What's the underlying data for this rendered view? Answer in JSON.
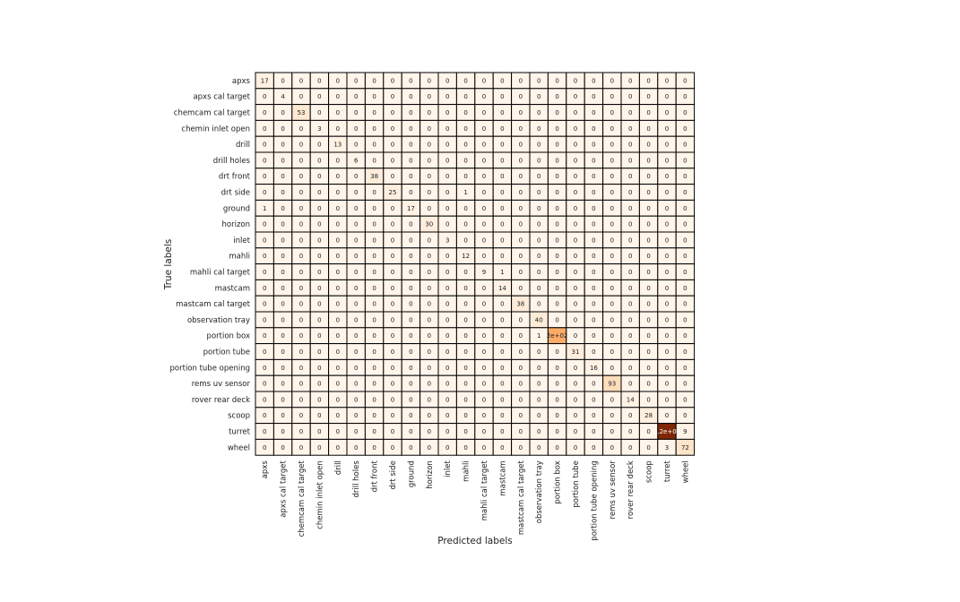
{
  "chart_data": {
    "type": "heatmap",
    "title": "",
    "xlabel": "Predicted labels",
    "ylabel": "True labels",
    "colormap": "Oranges",
    "grid": true,
    "labels": [
      "apxs",
      "apxs cal target",
      "chemcam cal target",
      "chemin inlet open",
      "drill",
      "drill holes",
      "drt front",
      "drt side",
      "ground",
      "horizon",
      "inlet",
      "mahli",
      "mahli cal target",
      "mastcam",
      "mastcam cal target",
      "observation tray",
      "portion box",
      "portion tube",
      "portion tube opening",
      "rems uv sensor",
      "rover rear deck",
      "scoop",
      "turret",
      "wheel"
    ],
    "matrix": [
      [
        17,
        0,
        0,
        0,
        0,
        0,
        0,
        0,
        0,
        0,
        0,
        0,
        0,
        0,
        0,
        0,
        0,
        0,
        0,
        0,
        0,
        0,
        0,
        0
      ],
      [
        0,
        4,
        0,
        0,
        0,
        0,
        0,
        0,
        0,
        0,
        0,
        0,
        0,
        0,
        0,
        0,
        0,
        0,
        0,
        0,
        0,
        0,
        0,
        0
      ],
      [
        0,
        0,
        53,
        0,
        0,
        0,
        0,
        0,
        0,
        0,
        0,
        0,
        0,
        0,
        0,
        0,
        0,
        0,
        0,
        0,
        0,
        0,
        0,
        0
      ],
      [
        0,
        0,
        0,
        3,
        0,
        0,
        0,
        0,
        0,
        0,
        0,
        0,
        0,
        0,
        0,
        0,
        0,
        0,
        0,
        0,
        0,
        0,
        0,
        0
      ],
      [
        0,
        0,
        0,
        0,
        13,
        0,
        0,
        0,
        0,
        0,
        0,
        0,
        0,
        0,
        0,
        0,
        0,
        0,
        0,
        0,
        0,
        0,
        0,
        0
      ],
      [
        0,
        0,
        0,
        0,
        0,
        6,
        0,
        0,
        0,
        0,
        0,
        0,
        0,
        0,
        0,
        0,
        0,
        0,
        0,
        0,
        0,
        0,
        0,
        0
      ],
      [
        0,
        0,
        0,
        0,
        0,
        0,
        38,
        0,
        0,
        0,
        0,
        0,
        0,
        0,
        0,
        0,
        0,
        0,
        0,
        0,
        0,
        0,
        0,
        0
      ],
      [
        0,
        0,
        0,
        0,
        0,
        0,
        0,
        25,
        0,
        0,
        0,
        1,
        0,
        0,
        0,
        0,
        0,
        0,
        0,
        0,
        0,
        0,
        0,
        0
      ],
      [
        1,
        0,
        0,
        0,
        0,
        0,
        0,
        0,
        17,
        0,
        0,
        0,
        0,
        0,
        0,
        0,
        0,
        0,
        0,
        0,
        0,
        0,
        0,
        0
      ],
      [
        0,
        0,
        0,
        0,
        0,
        0,
        0,
        0,
        0,
        30,
        0,
        0,
        0,
        0,
        0,
        0,
        0,
        0,
        0,
        0,
        0,
        0,
        0,
        0
      ],
      [
        0,
        0,
        0,
        0,
        0,
        0,
        0,
        0,
        0,
        0,
        3,
        0,
        0,
        0,
        0,
        0,
        0,
        0,
        0,
        0,
        0,
        0,
        0,
        0
      ],
      [
        0,
        0,
        0,
        0,
        0,
        0,
        0,
        0,
        0,
        0,
        0,
        12,
        0,
        0,
        0,
        0,
        0,
        0,
        0,
        0,
        0,
        0,
        0,
        0
      ],
      [
        0,
        0,
        0,
        0,
        0,
        0,
        0,
        0,
        0,
        0,
        0,
        0,
        9,
        1,
        0,
        0,
        0,
        0,
        0,
        0,
        0,
        0,
        0,
        0
      ],
      [
        0,
        0,
        0,
        0,
        0,
        0,
        0,
        0,
        0,
        0,
        0,
        0,
        0,
        14,
        0,
        0,
        0,
        0,
        0,
        0,
        0,
        0,
        0,
        0
      ],
      [
        0,
        0,
        0,
        0,
        0,
        0,
        0,
        0,
        0,
        0,
        0,
        0,
        0,
        0,
        38,
        0,
        0,
        0,
        0,
        0,
        0,
        0,
        0,
        0
      ],
      [
        0,
        0,
        0,
        0,
        0,
        0,
        0,
        0,
        0,
        0,
        0,
        0,
        0,
        0,
        0,
        40,
        0,
        0,
        0,
        0,
        0,
        0,
        0,
        0
      ],
      [
        0,
        0,
        0,
        0,
        0,
        0,
        0,
        0,
        0,
        0,
        0,
        0,
        0,
        0,
        0,
        1,
        200,
        0,
        0,
        0,
        0,
        0,
        0,
        0
      ],
      [
        0,
        0,
        0,
        0,
        0,
        0,
        0,
        0,
        0,
        0,
        0,
        0,
        0,
        0,
        0,
        0,
        0,
        31,
        0,
        0,
        0,
        0,
        0,
        0
      ],
      [
        0,
        0,
        0,
        0,
        0,
        0,
        0,
        0,
        0,
        0,
        0,
        0,
        0,
        0,
        0,
        0,
        0,
        0,
        16,
        0,
        0,
        0,
        0,
        0
      ],
      [
        0,
        0,
        0,
        0,
        0,
        0,
        0,
        0,
        0,
        0,
        0,
        0,
        0,
        0,
        0,
        0,
        0,
        0,
        0,
        93,
        0,
        0,
        0,
        0
      ],
      [
        0,
        0,
        0,
        0,
        0,
        0,
        0,
        0,
        0,
        0,
        0,
        0,
        0,
        0,
        0,
        0,
        0,
        0,
        0,
        0,
        14,
        0,
        0,
        0
      ],
      [
        0,
        0,
        0,
        0,
        0,
        0,
        0,
        0,
        0,
        0,
        0,
        0,
        0,
        0,
        0,
        0,
        0,
        0,
        0,
        0,
        0,
        28,
        0,
        0
      ],
      [
        0,
        0,
        0,
        0,
        0,
        0,
        0,
        0,
        0,
        0,
        0,
        0,
        0,
        0,
        0,
        0,
        0,
        0,
        0,
        0,
        0,
        0,
        520,
        9
      ],
      [
        0,
        0,
        0,
        0,
        0,
        0,
        0,
        0,
        0,
        0,
        0,
        0,
        0,
        0,
        0,
        0,
        0,
        0,
        0,
        0,
        0,
        0,
        3,
        72
      ]
    ],
    "display_labels": {
      "16,16": "2e+02",
      "22,22": "5.2e+02"
    }
  }
}
